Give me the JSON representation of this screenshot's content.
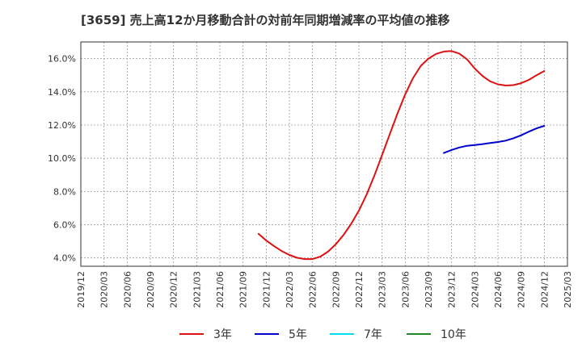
{
  "chart_data": {
    "type": "line",
    "title": "[3659]  売上高12か月移動合計の対前年同期増減率の平均値の推移",
    "xlabel": "",
    "ylabel": "",
    "ylim": [
      3.5,
      17.0
    ],
    "y_ticks": [
      {
        "value": 4,
        "label": "4.0%"
      },
      {
        "value": 6,
        "label": "6.0%"
      },
      {
        "value": 8,
        "label": "8.0%"
      },
      {
        "value": 10,
        "label": "10.0%"
      },
      {
        "value": 12,
        "label": "12.0%"
      },
      {
        "value": 14,
        "label": "14.0%"
      },
      {
        "value": 16,
        "label": "16.0%"
      }
    ],
    "x_tick_labels": [
      "2019/12",
      "2020/03",
      "2020/06",
      "2020/09",
      "2020/12",
      "2021/03",
      "2021/06",
      "2021/09",
      "2021/12",
      "2022/03",
      "2022/06",
      "2022/09",
      "2022/12",
      "2023/03",
      "2023/06",
      "2023/09",
      "2023/12",
      "2024/03",
      "2024/06",
      "2024/09",
      "2024/12",
      "2025/03"
    ],
    "x_range_months": [
      0,
      63
    ],
    "x_month_labels_note": "x values are months since 2019/12",
    "grid": true,
    "legend_position": "bottom",
    "series": [
      {
        "name": "3年",
        "color": "#dd1111",
        "x": [
          23,
          24,
          25,
          26,
          27,
          28,
          29,
          30,
          31,
          32,
          33,
          34,
          35,
          36,
          37,
          38,
          39,
          40,
          41,
          42,
          43,
          44,
          45,
          46,
          47,
          48,
          49,
          50,
          51,
          52,
          53,
          54,
          55,
          56,
          57,
          58,
          59
        ],
        "values": [
          5.45,
          5.05,
          4.72,
          4.42,
          4.18,
          4.01,
          3.93,
          3.93,
          4.08,
          4.38,
          4.82,
          5.38,
          6.05,
          6.85,
          7.82,
          8.95,
          10.2,
          11.45,
          12.7,
          13.85,
          14.82,
          15.55,
          16.0,
          16.28,
          16.42,
          16.45,
          16.3,
          15.95,
          15.4,
          14.95,
          14.63,
          14.45,
          14.38,
          14.4,
          14.52,
          14.72,
          15.0
        ],
        "last_point": {
          "x": 60,
          "value": 15.25
        }
      },
      {
        "name": "5年",
        "color": "#0000cc",
        "x": [
          47,
          48,
          49,
          50,
          51,
          52,
          53,
          54,
          55,
          56,
          57,
          58,
          59,
          60
        ],
        "values": [
          10.32,
          10.5,
          10.65,
          10.75,
          10.8,
          10.85,
          10.92,
          10.98,
          11.06,
          11.2,
          11.38,
          11.6,
          11.8,
          11.95
        ]
      },
      {
        "name": "7年",
        "color": "#00ddee",
        "x": [],
        "values": []
      },
      {
        "name": "10年",
        "color": "#228822",
        "x": [],
        "values": []
      }
    ]
  }
}
